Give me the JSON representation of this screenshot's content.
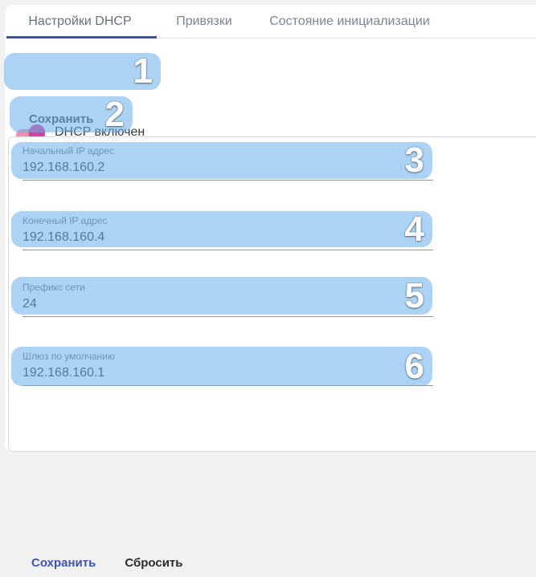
{
  "tabs": [
    {
      "label": "Настройки DHCP",
      "active": true
    },
    {
      "label": "Привязки",
      "active": false
    },
    {
      "label": "Состояние инициализации",
      "active": false
    }
  ],
  "toggle": {
    "label": "DHCP включен",
    "state": "on"
  },
  "top_save": {
    "label": "Сохранить"
  },
  "fields": [
    {
      "label": "Начальный IP адрес",
      "value": "192.168.160.2"
    },
    {
      "label": "Конечный IP адрес",
      "value": "192.168.160.4"
    },
    {
      "label": "Префикс сети",
      "value": "24"
    },
    {
      "label": "Шлюз по умолчанию",
      "value": "192.168.160.1"
    }
  ],
  "actions": {
    "save": "Сохранить",
    "reset": "Сбросить"
  },
  "annotations": [
    {
      "id": "1",
      "target": "dhcp-toggle"
    },
    {
      "id": "2",
      "target": "save-button-top"
    },
    {
      "id": "3",
      "target": "start-ip-field"
    },
    {
      "id": "4",
      "target": "end-ip-field"
    },
    {
      "id": "5",
      "target": "network-prefix-field"
    },
    {
      "id": "6",
      "target": "default-gateway-field"
    }
  ],
  "colors": {
    "accent": "#3f51b5",
    "toggle_pink": "#e91e63",
    "overlay_blue": "#69afeb"
  }
}
